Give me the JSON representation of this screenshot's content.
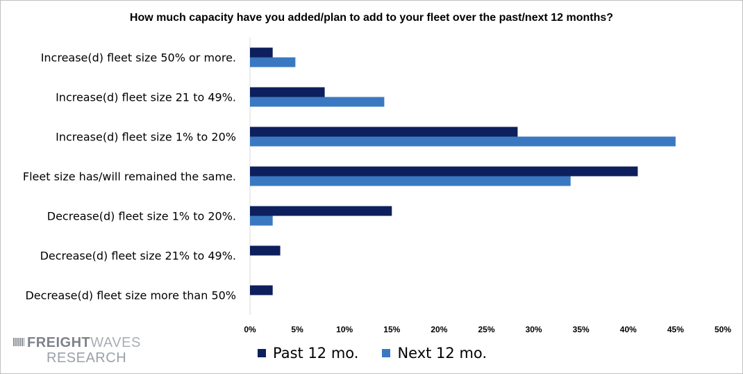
{
  "chart_data": {
    "type": "bar",
    "orientation": "horizontal",
    "title": "How much capacity have you added/plan to add to your fleet over the past/next 12 months?",
    "categories": [
      "Increase(d) fleet size 50% or more.",
      "Increase(d) fleet size 21 to 49%.",
      "Increase(d) fleet size 1% to 20%",
      "Fleet size has/will remained the same.",
      "Decrease(d) fleet size 1% to 20%.",
      "Decrease(d) fleet size 21% to 49%.",
      "Decrease(d) fleet size more than 50%"
    ],
    "series": [
      {
        "name": "Past 12 mo.",
        "color": "#0d1f5c",
        "values": [
          2.4,
          7.9,
          28.3,
          41.0,
          15.0,
          3.2,
          2.4
        ]
      },
      {
        "name": "Next 12 mo.",
        "color": "#3a79c2",
        "values": [
          4.8,
          14.2,
          45.0,
          33.9,
          2.4,
          null,
          null
        ]
      }
    ],
    "xlim": [
      0,
      50
    ],
    "xticks": [
      0,
      5,
      10,
      15,
      20,
      25,
      30,
      35,
      40,
      45,
      50
    ],
    "xtick_labels": [
      "0%",
      "5%",
      "10%",
      "15%",
      "20%",
      "25%",
      "30%",
      "35%",
      "40%",
      "45%",
      "50%"
    ],
    "grid": false,
    "legend_position": "bottom"
  },
  "logo": {
    "line1_bold": "FREIGHT",
    "line1_light": "WAVES",
    "line2": "RESEARCH"
  }
}
